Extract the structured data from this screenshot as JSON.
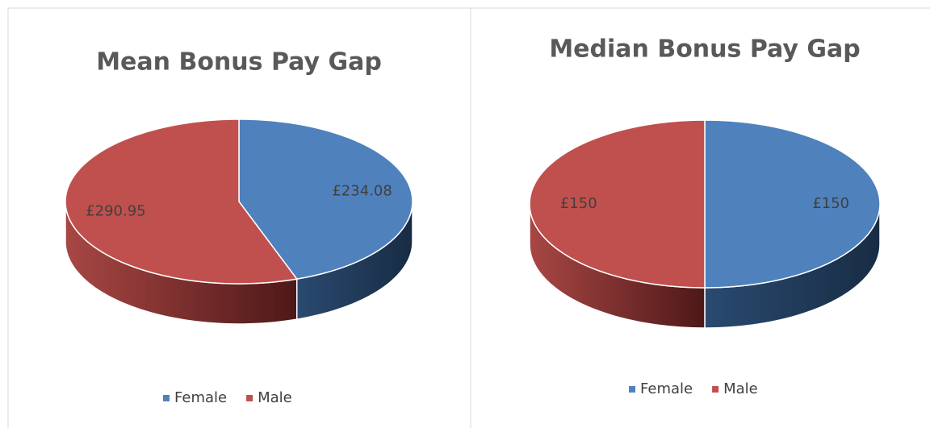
{
  "chart_data": [
    {
      "type": "pie",
      "title": "Mean Bonus Pay Gap",
      "categories": [
        "Female",
        "Male"
      ],
      "values": [
        234.08,
        290.95
      ],
      "value_labels": [
        "£234.08",
        "£290.95"
      ],
      "colors": [
        "#4f81bd",
        "#c0504d"
      ],
      "legend": "bottom"
    },
    {
      "type": "pie",
      "title": "Median Bonus Pay Gap",
      "categories": [
        "Female",
        "Male"
      ],
      "values": [
        150,
        150
      ],
      "value_labels": [
        "£150",
        "£150"
      ],
      "colors": [
        "#4f81bd",
        "#c0504d"
      ],
      "legend": "bottom"
    }
  ]
}
